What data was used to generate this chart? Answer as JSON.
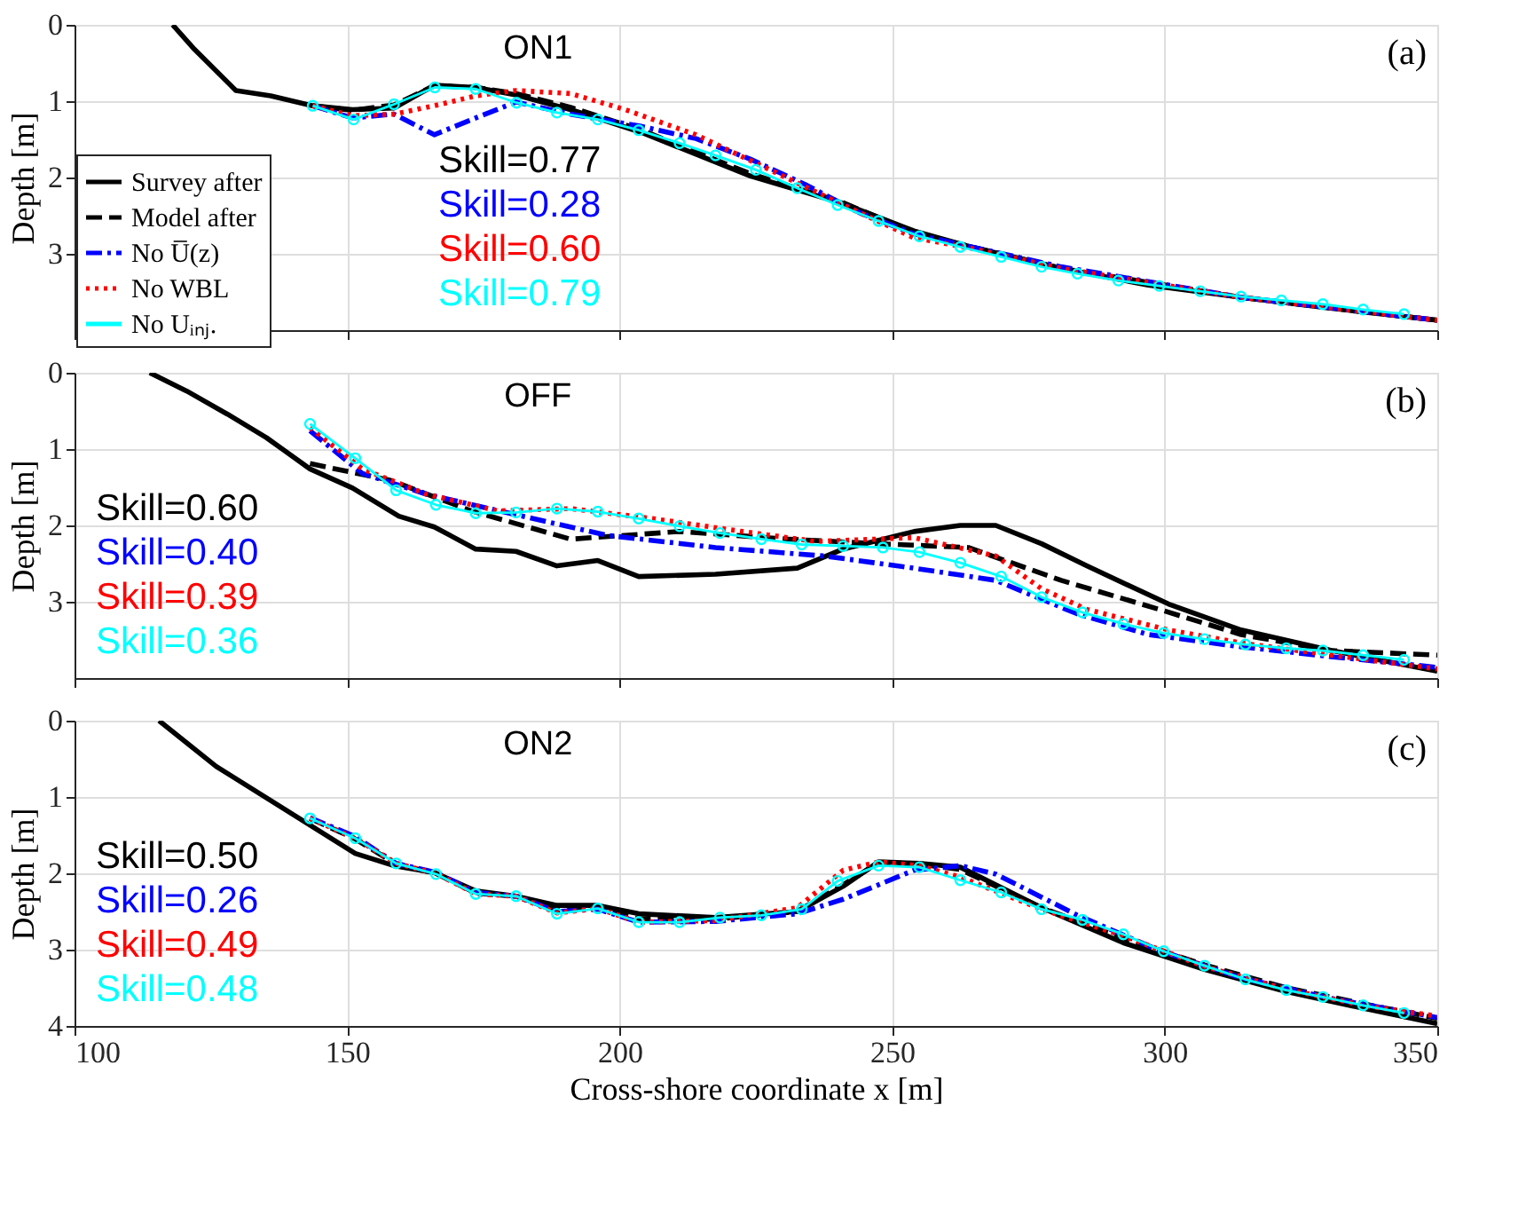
{
  "chart_data": [
    {
      "type": "line",
      "title": "ON1",
      "ylabel": "Depth [m]",
      "xlim": [
        100,
        350
      ],
      "xticks": [
        100,
        150,
        200,
        250,
        300,
        350
      ],
      "ylim": [
        4,
        0
      ],
      "yticks": [
        0,
        1,
        2,
        3
      ],
      "grid": true,
      "legend": "bottom left",
      "tick_labels": "y",
      "annotations": [
        "(a)",
        "Skill=0.77",
        "Skill=0.28",
        "Skill=0.60",
        "Skill=0.79"
      ],
      "series": [
        {
          "name": "Survey after",
          "color": "#000000",
          "line_style": "solid",
          "x": [
            118,
            122,
            129.6,
            136,
            143.7,
            151,
            158.6,
            166,
            173.6,
            181,
            191,
            204,
            224,
            241,
            254,
            264,
            281,
            297,
            314,
            330,
            350
          ],
          "values": [
            0,
            0.32,
            0.86,
            0.93,
            1.06,
            1.11,
            1.09,
            0.79,
            0.82,
            0.92,
            1.11,
            1.41,
            1.98,
            2.34,
            2.7,
            2.9,
            3.19,
            3.41,
            3.57,
            3.71,
            3.87
          ]
        },
        {
          "name": "Model after",
          "color": "#000000",
          "line_style": "dashed",
          "x": [
            143.7,
            151,
            158.6,
            166,
            173.6,
            181,
            191,
            204,
            224,
            241,
            254,
            264,
            281,
            314,
            350
          ],
          "values": [
            1.06,
            1.12,
            1.05,
            0.8,
            0.82,
            0.9,
            1.08,
            1.38,
            1.95,
            2.33,
            2.72,
            2.9,
            3.19,
            3.57,
            3.87
          ]
        },
        {
          "name": "No U̅(z)",
          "color": "#0000ff",
          "line_style": "dashdot",
          "x": [
            143.7,
            151,
            158.6,
            166,
            173.6,
            181,
            191,
            204,
            214,
            224,
            234,
            244,
            254,
            264,
            281,
            314,
            350
          ],
          "values": [
            1.06,
            1.22,
            1.17,
            1.44,
            1.22,
            1.01,
            1.17,
            1.33,
            1.49,
            1.76,
            2.09,
            2.46,
            2.74,
            2.9,
            3.17,
            3.57,
            3.87
          ]
        },
        {
          "name": "No WBL",
          "color": "#ff0000",
          "line_style": "dotted",
          "x": [
            143.7,
            151,
            158.6,
            166,
            173.6,
            181,
            191,
            201,
            214,
            227.6,
            241,
            254,
            264,
            281,
            314,
            350
          ],
          "values": [
            1.06,
            1.19,
            1.17,
            1.06,
            0.93,
            0.86,
            0.9,
            1.11,
            1.44,
            1.9,
            2.36,
            2.79,
            2.92,
            3.19,
            3.57,
            3.87
          ]
        },
        {
          "name": "No Uᵢₙⱼ.",
          "color": "#00ffff",
          "line_style": "solid",
          "marker": "circle",
          "x": [
            143.7,
            151.2,
            158.6,
            166.1,
            173.6,
            181.1,
            188.5,
            196,
            203.5,
            211,
            217.6,
            225,
            232.6,
            240,
            247.5,
            255,
            262.5,
            270,
            277.4,
            284,
            291.5,
            299,
            306.5,
            314,
            321.4,
            329,
            336.4,
            343.9
          ],
          "values": [
            1.06,
            1.24,
            1.04,
            0.82,
            0.84,
            1.02,
            1.15,
            1.24,
            1.38,
            1.55,
            1.71,
            1.9,
            2.14,
            2.36,
            2.57,
            2.77,
            2.91,
            3.04,
            3.17,
            3.26,
            3.35,
            3.42,
            3.49,
            3.56,
            3.61,
            3.66,
            3.73,
            3.79
          ]
        }
      ]
    },
    {
      "type": "line",
      "title": "OFF",
      "ylabel": "Depth [m]",
      "xlim": [
        100,
        350
      ],
      "xticks": [
        100,
        150,
        200,
        250,
        300,
        350
      ],
      "ylim": [
        4,
        0
      ],
      "yticks": [
        0,
        1,
        2,
        3
      ],
      "grid": true,
      "tick_labels": "y",
      "annotations": [
        "(b)",
        "Skill=0.60",
        "Skill=0.40",
        "Skill=0.39",
        "Skill=0.36"
      ],
      "series": [
        {
          "color": "#000000",
          "line_style": "solid",
          "x": [
            113.8,
            120.6,
            128,
            135.2,
            143.2,
            151,
            159.5,
            166,
            173.6,
            181,
            188.5,
            196,
            203.5,
            217.6,
            232.6,
            241,
            254,
            262.5,
            269,
            277.4,
            285.7,
            300.7,
            314,
            330.6,
            350
          ],
          "values": [
            0,
            0.24,
            0.54,
            0.85,
            1.26,
            1.51,
            1.88,
            2.02,
            2.31,
            2.34,
            2.53,
            2.46,
            2.67,
            2.64,
            2.56,
            2.31,
            2.08,
            2.0,
            2.0,
            2.24,
            2.53,
            3.03,
            3.37,
            3.64,
            3.91
          ]
        },
        {
          "color": "#000000",
          "line_style": "dashed",
          "x": [
            143.2,
            158,
            172.8,
            191,
            211,
            231,
            247.5,
            264,
            281,
            299,
            314,
            330.6,
            350
          ],
          "values": [
            1.19,
            1.41,
            1.81,
            2.18,
            2.08,
            2.18,
            2.24,
            2.29,
            2.72,
            3.1,
            3.43,
            3.64,
            3.7
          ]
        },
        {
          "color": "#0000ff",
          "line_style": "dashdot",
          "x": [
            143.2,
            152.8,
            164.5,
            181,
            197.7,
            217.6,
            237.5,
            254,
            269,
            284,
            297,
            314,
            330.6,
            350
          ],
          "values": [
            0.76,
            1.32,
            1.59,
            1.86,
            2.13,
            2.29,
            2.4,
            2.56,
            2.72,
            3.16,
            3.43,
            3.59,
            3.72,
            3.86
          ]
        },
        {
          "color": "#ff0000",
          "line_style": "dotted",
          "x": [
            143.2,
            152.8,
            164.5,
            177.7,
            191,
            206,
            222.6,
            236,
            254,
            269,
            277.4,
            285.7,
            300.7,
            314,
            330.6,
            350
          ],
          "values": [
            0.72,
            1.26,
            1.59,
            1.81,
            1.78,
            1.91,
            2.08,
            2.21,
            2.16,
            2.4,
            2.83,
            3.1,
            3.37,
            3.54,
            3.7,
            3.88
          ]
        },
        {
          "color": "#00ffff",
          "line_style": "solid",
          "marker": "circle",
          "x": [
            143.2,
            151.5,
            159,
            166.3,
            173.6,
            181,
            188.5,
            196,
            203.5,
            211,
            218.4,
            226,
            233.4,
            241,
            248.3,
            255,
            262.5,
            270,
            277.4,
            284.9,
            292.4,
            299.8,
            307.3,
            314.8,
            322.3,
            329,
            336.4,
            343.9
          ],
          "values": [
            0.67,
            1.12,
            1.54,
            1.73,
            1.84,
            1.83,
            1.78,
            1.82,
            1.91,
            2.01,
            2.1,
            2.18,
            2.25,
            2.27,
            2.29,
            2.35,
            2.49,
            2.67,
            2.94,
            3.14,
            3.29,
            3.41,
            3.49,
            3.56,
            3.61,
            3.64,
            3.7,
            3.76
          ]
        }
      ]
    },
    {
      "type": "line",
      "title": "ON2",
      "xlabel": "Cross-shore coordinate x [m]",
      "ylabel": "Depth [m]",
      "xlim": [
        100,
        350
      ],
      "xticks": [
        100,
        150,
        200,
        250,
        300,
        350
      ],
      "ylim": [
        4,
        0
      ],
      "yticks": [
        0,
        1,
        2,
        3,
        4
      ],
      "grid": true,
      "annotations": [
        "(c)",
        "Skill=0.50",
        "Skill=0.26",
        "Skill=0.49",
        "Skill=0.48"
      ],
      "series": [
        {
          "color": "#000000",
          "line_style": "solid",
          "x": [
            115.5,
            126,
            151.5,
            158.6,
            166,
            173.6,
            181,
            188.5,
            196,
            203.5,
            217.6,
            232.6,
            241,
            247.5,
            255,
            262.5,
            277.4,
            292.4,
            307.3,
            322.3,
            337.2,
            350
          ],
          "values": [
            0,
            0.6,
            1.74,
            1.9,
            1.99,
            2.23,
            2.3,
            2.42,
            2.42,
            2.53,
            2.58,
            2.5,
            2.17,
            1.85,
            1.87,
            1.92,
            2.45,
            2.91,
            3.26,
            3.55,
            3.78,
            3.97
          ]
        },
        {
          "color": "#000000",
          "line_style": "dashed",
          "x": [
            143.2,
            151.5,
            159,
            166.3,
            173.6,
            181,
            188.5,
            196,
            203.5,
            217.6,
            232.6,
            241,
            247.5,
            255,
            262.5,
            277.4,
            292.4,
            307.3,
            322.3,
            337.2,
            350
          ],
          "values": [
            1.28,
            1.55,
            1.88,
            2.0,
            2.26,
            2.3,
            2.48,
            2.45,
            2.6,
            2.6,
            2.5,
            2.15,
            1.86,
            1.88,
            1.95,
            2.45,
            2.85,
            3.2,
            3.5,
            3.72,
            3.9
          ]
        },
        {
          "color": "#0000ff",
          "line_style": "dashdot",
          "x": [
            143.2,
            151.5,
            159,
            166.3,
            173.6,
            181,
            188.5,
            196,
            203.5,
            217.6,
            232.6,
            241,
            254,
            262.5,
            269,
            284,
            299,
            314,
            330.6,
            350
          ],
          "values": [
            1.27,
            1.52,
            1.87,
            1.99,
            2.25,
            2.3,
            2.5,
            2.47,
            2.64,
            2.63,
            2.53,
            2.34,
            1.96,
            1.9,
            2.01,
            2.55,
            3.01,
            3.37,
            3.64,
            3.89
          ]
        },
        {
          "color": "#ff0000",
          "line_style": "dotted",
          "x": [
            143.2,
            151.5,
            159,
            166.3,
            173.6,
            181,
            188.5,
            196,
            203.5,
            217.6,
            232.6,
            241,
            247.5,
            255,
            262.5,
            277.4,
            292.4,
            307.3,
            322.3,
            337.2,
            350
          ],
          "values": [
            1.28,
            1.54,
            1.87,
            2.0,
            2.27,
            2.3,
            2.52,
            2.46,
            2.64,
            2.62,
            2.45,
            1.96,
            1.85,
            1.9,
            2.05,
            2.47,
            2.82,
            3.22,
            3.52,
            3.74,
            3.87
          ]
        },
        {
          "color": "#00ffff",
          "line_style": "solid",
          "marker": "circle",
          "x": [
            143.2,
            151.5,
            159,
            166.3,
            173.6,
            181,
            188.5,
            196,
            203.5,
            211,
            218.4,
            226,
            233.4,
            240,
            247.5,
            255,
            262.5,
            270,
            277.4,
            284.9,
            292.4,
            299.8,
            307.3,
            314.8,
            322.3,
            329,
            336.4,
            343.9
          ],
          "values": [
            1.28,
            1.54,
            1.87,
            2.01,
            2.27,
            2.3,
            2.53,
            2.46,
            2.64,
            2.64,
            2.58,
            2.55,
            2.47,
            2.1,
            1.9,
            1.92,
            2.09,
            2.25,
            2.47,
            2.61,
            2.8,
            3.02,
            3.21,
            3.39,
            3.53,
            3.62,
            3.73,
            3.83
          ]
        }
      ]
    }
  ]
}
